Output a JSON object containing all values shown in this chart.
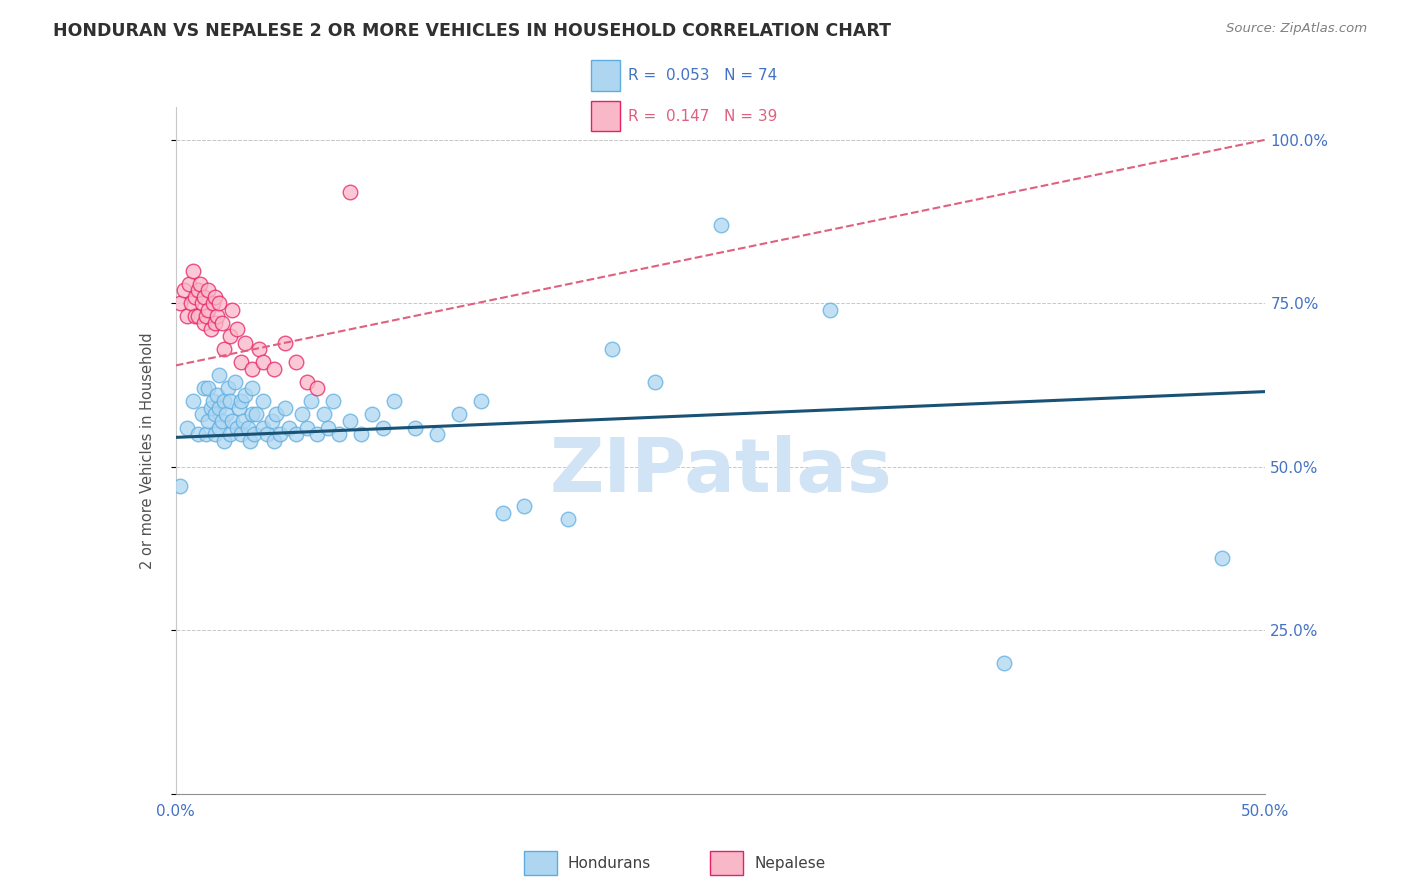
{
  "title": "HONDURAN VS NEPALESE 2 OR MORE VEHICLES IN HOUSEHOLD CORRELATION CHART",
  "source": "Source: ZipAtlas.com",
  "ylabel": "2 or more Vehicles in Household",
  "xlim": [
    0.0,
    0.5
  ],
  "ylim": [
    0.0,
    1.05
  ],
  "honduran_color": "#aed6f1",
  "honduran_edge": "#5dade2",
  "nepalese_color": "#f9b8c8",
  "nepalese_edge": "#e91e63",
  "trend_blue": "#1a5276",
  "trend_pink": "#e06080",
  "watermark_color": "#d0e4f5",
  "honduran_x": [
    0.002,
    0.005,
    0.008,
    0.01,
    0.012,
    0.013,
    0.014,
    0.015,
    0.015,
    0.016,
    0.017,
    0.018,
    0.018,
    0.019,
    0.02,
    0.02,
    0.02,
    0.021,
    0.022,
    0.022,
    0.023,
    0.024,
    0.025,
    0.025,
    0.026,
    0.027,
    0.028,
    0.029,
    0.03,
    0.03,
    0.031,
    0.032,
    0.033,
    0.034,
    0.035,
    0.035,
    0.036,
    0.037,
    0.04,
    0.04,
    0.042,
    0.044,
    0.045,
    0.046,
    0.048,
    0.05,
    0.052,
    0.055,
    0.058,
    0.06,
    0.062,
    0.065,
    0.068,
    0.07,
    0.072,
    0.075,
    0.08,
    0.085,
    0.09,
    0.095,
    0.1,
    0.11,
    0.12,
    0.13,
    0.14,
    0.15,
    0.16,
    0.18,
    0.2,
    0.22,
    0.25,
    0.3,
    0.38,
    0.48
  ],
  "honduran_y": [
    0.47,
    0.56,
    0.6,
    0.55,
    0.58,
    0.62,
    0.55,
    0.57,
    0.62,
    0.59,
    0.6,
    0.55,
    0.58,
    0.61,
    0.56,
    0.59,
    0.64,
    0.57,
    0.54,
    0.6,
    0.58,
    0.62,
    0.55,
    0.6,
    0.57,
    0.63,
    0.56,
    0.59,
    0.55,
    0.6,
    0.57,
    0.61,
    0.56,
    0.54,
    0.58,
    0.62,
    0.55,
    0.58,
    0.56,
    0.6,
    0.55,
    0.57,
    0.54,
    0.58,
    0.55,
    0.59,
    0.56,
    0.55,
    0.58,
    0.56,
    0.6,
    0.55,
    0.58,
    0.56,
    0.6,
    0.55,
    0.57,
    0.55,
    0.58,
    0.56,
    0.6,
    0.56,
    0.55,
    0.58,
    0.6,
    0.43,
    0.44,
    0.42,
    0.68,
    0.63,
    0.87,
    0.74,
    0.2,
    0.36
  ],
  "nepalese_x": [
    0.002,
    0.004,
    0.005,
    0.006,
    0.007,
    0.008,
    0.009,
    0.009,
    0.01,
    0.01,
    0.011,
    0.012,
    0.013,
    0.013,
    0.014,
    0.015,
    0.015,
    0.016,
    0.017,
    0.018,
    0.018,
    0.019,
    0.02,
    0.021,
    0.022,
    0.025,
    0.026,
    0.028,
    0.03,
    0.032,
    0.035,
    0.038,
    0.04,
    0.045,
    0.05,
    0.055,
    0.06,
    0.065,
    0.08
  ],
  "nepalese_y": [
    0.75,
    0.77,
    0.73,
    0.78,
    0.75,
    0.8,
    0.76,
    0.73,
    0.77,
    0.73,
    0.78,
    0.75,
    0.72,
    0.76,
    0.73,
    0.77,
    0.74,
    0.71,
    0.75,
    0.72,
    0.76,
    0.73,
    0.75,
    0.72,
    0.68,
    0.7,
    0.74,
    0.71,
    0.66,
    0.69,
    0.65,
    0.68,
    0.66,
    0.65,
    0.69,
    0.66,
    0.63,
    0.62,
    0.92
  ],
  "blue_trend_x": [
    0.0,
    0.5
  ],
  "blue_trend_y": [
    0.545,
    0.615
  ],
  "pink_trend_x": [
    0.0,
    0.5
  ],
  "pink_trend_y": [
    0.655,
    1.0
  ]
}
